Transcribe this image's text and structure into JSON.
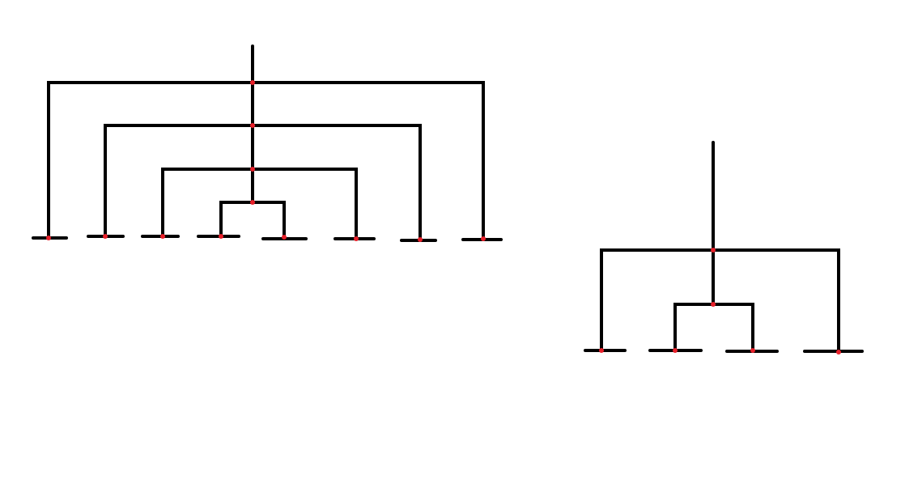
{
  "colors": {
    "line": "#000000",
    "node": "#e8202a",
    "background": "#ffffff"
  },
  "trees": [
    {
      "id": "tree-large",
      "leaf_count": 8,
      "internal_node_count": 4,
      "structure": "nested-symmetric"
    },
    {
      "id": "tree-small",
      "leaf_count": 4,
      "internal_node_count": 2,
      "structure": "nested-symmetric"
    }
  ]
}
